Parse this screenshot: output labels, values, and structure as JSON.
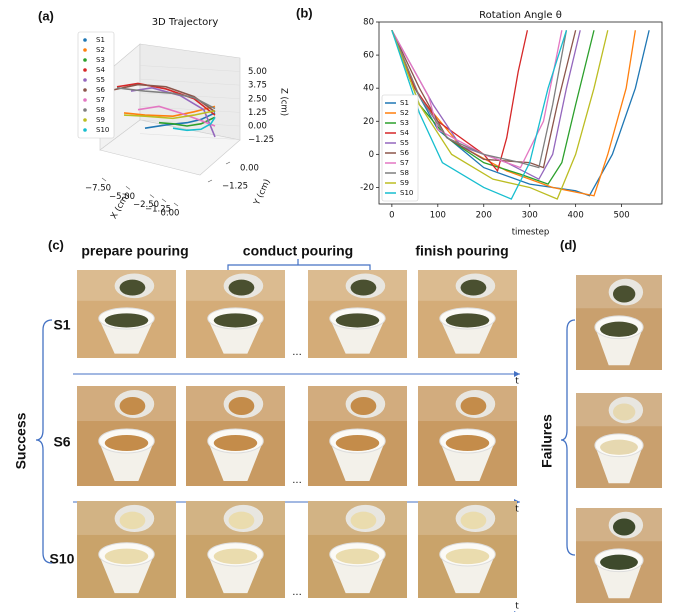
{
  "figure": {
    "panel_labels": [
      "(a)",
      "(b)",
      "(c)",
      "(d)"
    ],
    "stage_headers": [
      "prepare pouring",
      "conduct pouring",
      "finish pouring"
    ],
    "row_labels": [
      "S1",
      "S6",
      "S10"
    ],
    "success_label": "Success",
    "failures_label": "Failures",
    "time_label": "t",
    "ellipsis": "..."
  },
  "chart_data": [
    {
      "type": "line3d",
      "title": "3D Trajectory",
      "x_label": "X (cm)",
      "y_label": "Y (cm)",
      "z_label": "Z (cm)",
      "xlim": [
        -7.5,
        0
      ],
      "ylim": [
        -1.25,
        0
      ],
      "zlim": [
        -1.25,
        5
      ],
      "xticks": [
        {
          "value": -7.5,
          "label": "−7.50"
        },
        {
          "value": -5,
          "label": "−5.00"
        },
        {
          "value": -2.5,
          "label": "−2.50"
        },
        {
          "value": -1.25,
          "label": "−1.25"
        },
        {
          "value": 0,
          "label": "0.00"
        }
      ],
      "yticks": [
        {
          "value": -1.25,
          "label": "−1.25"
        },
        {
          "value": 0,
          "label": "0.00"
        }
      ],
      "zticks": [
        {
          "value": 5,
          "label": "5.00"
        },
        {
          "value": 3.75,
          "label": "3.75"
        },
        {
          "value": 2.5,
          "label": "2.50"
        },
        {
          "value": 1.25,
          "label": "1.25"
        },
        {
          "value": 0,
          "label": "0.00"
        },
        {
          "value": -1.25,
          "label": "−1.25"
        }
      ],
      "legend": "upper left",
      "series": [
        {
          "name": "S1",
          "color": "#1f77b4",
          "x": [
            -5,
            -3.5,
            -2,
            -1,
            0
          ],
          "values": [
            -0.2,
            0.1,
            0.3,
            0.6,
            1.2
          ]
        },
        {
          "name": "S2",
          "color": "#ff7f0e",
          "x": [
            -6.5,
            -5,
            -3,
            -1.5,
            0
          ],
          "values": [
            1.2,
            1.0,
            0.9,
            1.3,
            1.8
          ]
        },
        {
          "name": "S3",
          "color": "#2ca02c",
          "x": [
            -4,
            -3,
            -2,
            -1,
            0
          ],
          "values": [
            0.3,
            0.2,
            0.0,
            0.2,
            0.8
          ]
        },
        {
          "name": "S4",
          "color": "#d62728",
          "x": [
            -7,
            -5.5,
            -3.5,
            -1.5,
            0
          ],
          "values": [
            3.6,
            3.9,
            3.4,
            2.5,
            1.0
          ]
        },
        {
          "name": "S5",
          "color": "#9467bd",
          "x": [
            -6,
            -4.5,
            -2.5,
            -0.8,
            0
          ],
          "values": [
            3.2,
            3.5,
            2.8,
            1.5,
            -1.0
          ]
        },
        {
          "name": "S6",
          "color": "#8c564b",
          "x": [
            -7.3,
            -5.5,
            -3.5,
            -1.5,
            0
          ],
          "values": [
            3.3,
            3.8,
            3.6,
            2.7,
            1.3
          ]
        },
        {
          "name": "S7",
          "color": "#e377c2",
          "x": [
            -5.5,
            -4,
            -2.5,
            -1,
            0
          ],
          "values": [
            1.5,
            1.8,
            1.2,
            0.5,
            0
          ]
        },
        {
          "name": "S8",
          "color": "#7f7f7f",
          "x": [
            -7,
            -5,
            -3,
            -1.5,
            0
          ],
          "values": [
            3.5,
            3.2,
            3.0,
            2.6,
            1.6
          ]
        },
        {
          "name": "S9",
          "color": "#bcbd22",
          "x": [
            -6.5,
            -5,
            -3,
            -1.5,
            0
          ],
          "values": [
            1.0,
            0.9,
            0.7,
            1.0,
            1.4
          ]
        },
        {
          "name": "S10",
          "color": "#17becf",
          "x": [
            -3,
            -2,
            -1,
            -0.3,
            0
          ],
          "values": [
            -0.2,
            -0.4,
            -0.3,
            0.2,
            0.8
          ]
        }
      ]
    },
    {
      "type": "line",
      "title": "Rotation Angle θ",
      "x_label": "timestep",
      "xlim": [
        -28,
        588
      ],
      "ylim": [
        -30,
        80
      ],
      "xticks": [
        0,
        100,
        200,
        300,
        400,
        500
      ],
      "yticks": [
        -20,
        0,
        20,
        40,
        60,
        80
      ],
      "legend": "lower left",
      "series": [
        {
          "name": "S1",
          "color": "#1f77b4",
          "x": [
            0,
            50,
            100,
            200,
            300,
            400,
            430,
            480,
            530,
            560
          ],
          "values": [
            75,
            40,
            15,
            -8,
            -18,
            -22,
            -25,
            0,
            40,
            75
          ]
        },
        {
          "name": "S2",
          "color": "#ff7f0e",
          "x": [
            0,
            60,
            150,
            250,
            350,
            440,
            470,
            510,
            530
          ],
          "values": [
            75,
            35,
            5,
            -10,
            -20,
            -25,
            0,
            40,
            75
          ]
        },
        {
          "name": "S3",
          "color": "#2ca02c",
          "x": [
            0,
            60,
            120,
            200,
            280,
            340,
            370,
            400,
            440
          ],
          "values": [
            75,
            30,
            10,
            -5,
            -12,
            -18,
            -5,
            30,
            75
          ]
        },
        {
          "name": "S4",
          "color": "#d62728",
          "x": [
            0,
            50,
            100,
            200,
            230,
            250,
            275,
            295
          ],
          "values": [
            75,
            40,
            20,
            0,
            -10,
            10,
            50,
            75
          ]
        },
        {
          "name": "S5",
          "color": "#9467bd",
          "x": [
            0,
            40,
            90,
            150,
            250,
            320,
            350,
            380,
            410
          ],
          "values": [
            75,
            55,
            30,
            5,
            -5,
            -15,
            0,
            40,
            75
          ]
        },
        {
          "name": "S6",
          "color": "#8c564b",
          "x": [
            0,
            60,
            120,
            200,
            300,
            330,
            360,
            400
          ],
          "values": [
            75,
            40,
            10,
            -3,
            -5,
            -8,
            30,
            75
          ]
        },
        {
          "name": "S7",
          "color": "#e377c2",
          "x": [
            0,
            50,
            80,
            100,
            200,
            280,
            330,
            370
          ],
          "values": [
            75,
            50,
            35,
            15,
            0,
            -8,
            20,
            75
          ]
        },
        {
          "name": "S8",
          "color": "#7f7f7f",
          "x": [
            0,
            60,
            120,
            200,
            280,
            320,
            350,
            380
          ],
          "values": [
            75,
            35,
            10,
            0,
            -5,
            -8,
            30,
            75
          ]
        },
        {
          "name": "S9",
          "color": "#bcbd22",
          "x": [
            0,
            60,
            130,
            220,
            300,
            360,
            400,
            440,
            470
          ],
          "values": [
            75,
            30,
            0,
            -15,
            -20,
            -27,
            0,
            40,
            75
          ]
        },
        {
          "name": "S10",
          "color": "#17becf",
          "x": [
            0,
            60,
            110,
            200,
            260,
            300,
            340,
            380
          ],
          "values": [
            75,
            25,
            -5,
            -20,
            -27,
            -5,
            40,
            75
          ]
        }
      ]
    }
  ]
}
